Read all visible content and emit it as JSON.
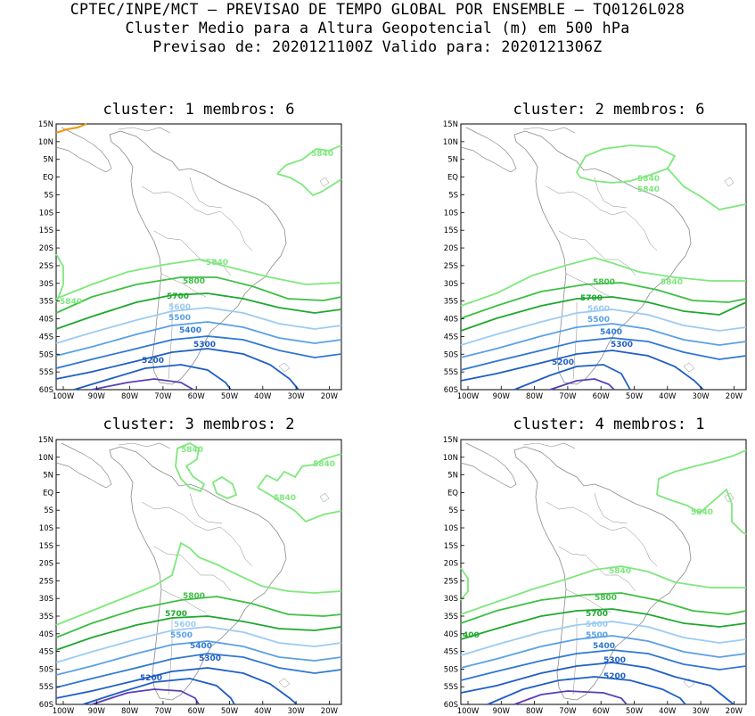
{
  "header": {
    "line1": "CPTEC/INPE/MCT – PREVISAO DE TEMPO GLOBAL POR ENSEMBLE – TQ0126L028",
    "line2": "Cluster Medio para a Altura Geopotencial (m) em 500 hPa",
    "line3": "Previsao de: 2020121100Z   Valido para: 2020121306Z"
  },
  "axes": {
    "lat_labels": [
      "15N",
      "10N",
      "5N",
      "EQ",
      "5S",
      "10S",
      "15S",
      "20S",
      "25S",
      "30S",
      "35S",
      "40S",
      "45S",
      "50S",
      "55S",
      "60S"
    ],
    "lon_labels": [
      "100W",
      "90W",
      "80W",
      "70W",
      "60W",
      "50W",
      "40W",
      "30W",
      "20W"
    ]
  },
  "colors": {
    "c5200": "#5a3fb5",
    "c5300": "#1f5ec4",
    "c5400": "#2f78d2",
    "c5500": "#5aa0e6",
    "c5600": "#9ccbf2",
    "c5700": "#1fa82e",
    "c5800": "#3fbf45",
    "c5840": "#7ee87c",
    "c5880": "#f0960a",
    "coast": "#8a8a8a"
  },
  "panels": [
    {
      "title": "cluster: 1   membros: 6",
      "labels": {
        "l5840a": "5840",
        "l5840b": "5840",
        "l5840c": "5840",
        "l5800": "5800",
        "l5700": "5700",
        "l5600": "5600",
        "l5500": "5500",
        "l5400": "5400",
        "l5300": "5300",
        "l5200": "5200"
      }
    },
    {
      "title": "cluster: 2   membros: 6",
      "labels": {
        "l5840a": "5840",
        "l5840b": "5840",
        "l5840c": "5840",
        "l5800": "5800",
        "l5700": "5700",
        "l5600": "5600",
        "l5500": "5500",
        "l5400": "5400",
        "l5300": "5300",
        "l5200": "5200"
      }
    },
    {
      "title": "cluster: 3   membros: 2",
      "labels": {
        "l5840a": "5840",
        "l5840b": "5840",
        "l5840c": "5840",
        "l5800": "5800",
        "l5700": "5700",
        "l5600": "5600",
        "l5500": "5500",
        "l5400": "5400",
        "l5300": "5300",
        "l5200": "5200"
      }
    },
    {
      "title": "cluster: 4   membros: 1",
      "labels": {
        "l5840a": "5840",
        "l5840b": "5840",
        "l5840c": "400",
        "l5800": "5800",
        "l5700": "5700",
        "l5600": "5600",
        "l5500": "5500",
        "l5400": "5400",
        "l5300": "5300",
        "l5200": "5200"
      }
    }
  ]
}
